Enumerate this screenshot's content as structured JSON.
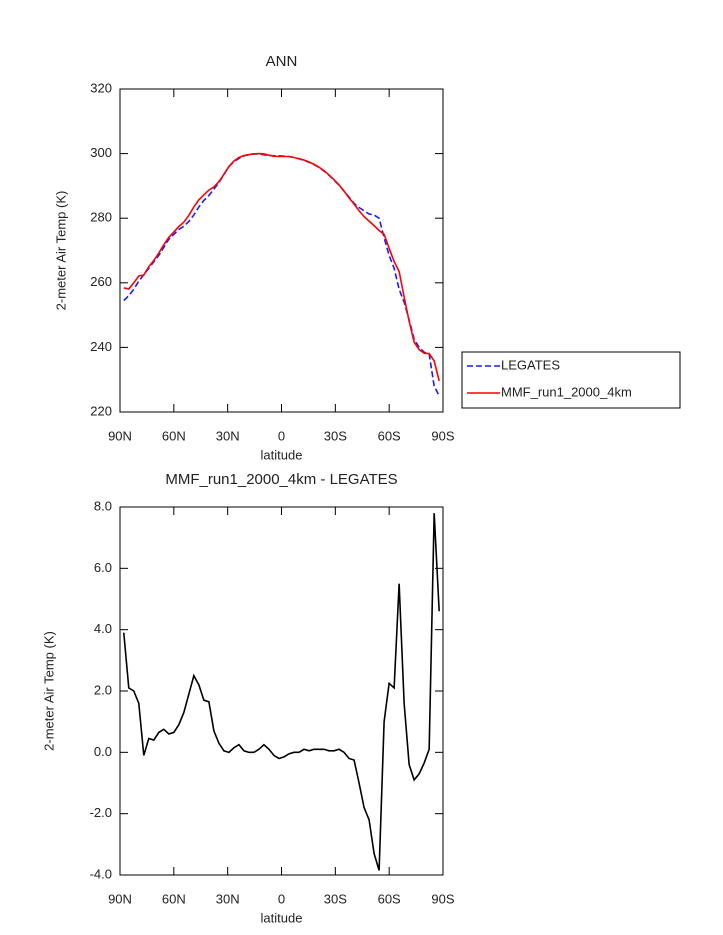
{
  "chart_data": [
    {
      "type": "line",
      "title": "ANN",
      "xlabel": "latitude",
      "ylabel": "2-meter Air Temp (K)",
      "x": [
        87.9,
        85.11,
        82.32,
        79.53,
        76.74,
        73.95,
        71.16,
        68.37,
        65.58,
        62.79,
        60,
        57.21,
        54.42,
        51.63,
        48.84,
        46.05,
        43.26,
        40.47,
        37.68,
        34.89,
        32.1,
        29.31,
        26.52,
        23.73,
        20.94,
        18.15,
        15.36,
        12.57,
        9.78,
        6.99,
        4.2,
        1.41,
        -1.38,
        -4.17,
        -6.96,
        -9.75,
        -12.54,
        -15.33,
        -18.12,
        -20.91,
        -23.7,
        -26.49,
        -29.28,
        -32.07,
        -34.86,
        -37.65,
        -40.44,
        -43.23,
        -46.02,
        -48.81,
        -51.6,
        -54.39,
        -57.18,
        -59.97,
        -62.76,
        -65.55,
        -68.34,
        -71.13,
        -73.92,
        -76.71,
        -79.5,
        -82.29,
        -85.08,
        -87.87
      ],
      "series": [
        {
          "name": "LEGATES",
          "color": "#1a1aff",
          "linestyle": "dashed",
          "values": [
            254.5,
            256,
            258,
            260.5,
            262.5,
            264.5,
            266.5,
            268.5,
            271,
            273.5,
            275,
            276.5,
            277.5,
            279,
            281,
            283.5,
            285.5,
            287,
            289,
            291,
            293.5,
            296,
            297.5,
            298.5,
            299.3,
            299.7,
            299.9,
            299.9,
            299.6,
            299.4,
            299.3,
            299.3,
            299.2,
            299.1,
            298.8,
            298.4,
            297.9,
            297.3,
            296.6,
            295.7,
            294.6,
            293.3,
            291.8,
            290.2,
            288.4,
            286.5,
            284.6,
            283.3,
            282.3,
            281.3,
            281,
            280,
            274,
            268.5,
            264.5,
            258,
            254,
            248.5,
            242.5,
            240,
            238.5,
            238,
            228,
            225
          ]
        },
        {
          "name": "MMF_run1_2000_4km",
          "color": "#ff0000",
          "linestyle": "solid",
          "values": [
            258.4,
            258.1,
            260,
            262.1,
            262.4,
            265,
            266.9,
            269.2,
            271.8,
            274.1,
            275.7,
            277.4,
            278.8,
            280.9,
            283.5,
            285.7,
            287.2,
            288.7,
            289.7,
            291.3,
            293.6,
            296,
            297.7,
            298.8,
            299.4,
            299.7,
            299.9,
            300,
            299.9,
            299.5,
            299.2,
            299.1,
            299.1,
            299.1,
            298.8,
            298.4,
            298,
            297.4,
            296.7,
            295.8,
            294.7,
            293.4,
            291.9,
            290.3,
            288.4,
            286.3,
            284.4,
            282.3,
            280.5,
            279.1,
            277.7,
            276.2,
            275,
            270.7,
            266.6,
            263.5,
            255.6,
            248.1,
            241.6,
            239.3,
            238.2,
            238.1,
            235.8,
            229.6
          ]
        }
      ],
      "xlim": [
        90,
        -90
      ],
      "xticks": [
        {
          "value": 90,
          "label": "90N"
        },
        {
          "value": 60,
          "label": "60N"
        },
        {
          "value": 30,
          "label": "30N"
        },
        0,
        {
          "value": -30,
          "label": "30S"
        },
        {
          "value": -60,
          "label": "60S"
        },
        {
          "value": -90,
          "label": "90S"
        }
      ],
      "ylim": [
        220,
        320
      ],
      "yticks": [
        220,
        240,
        260,
        280,
        300,
        320
      ],
      "legend": "outside-right"
    },
    {
      "type": "line",
      "title": "MMF_run1_2000_4km - LEGATES",
      "xlabel": "latitude",
      "ylabel": "2-meter Air Temp (K)",
      "x": [
        87.9,
        85.11,
        82.32,
        79.53,
        76.74,
        73.95,
        71.16,
        68.37,
        65.58,
        62.79,
        60,
        57.21,
        54.42,
        51.63,
        48.84,
        46.05,
        43.26,
        40.47,
        37.68,
        34.89,
        32.1,
        29.31,
        26.52,
        23.73,
        20.94,
        18.15,
        15.36,
        12.57,
        9.78,
        6.99,
        4.2,
        1.41,
        -1.38,
        -4.17,
        -6.96,
        -9.75,
        -12.54,
        -15.33,
        -18.12,
        -20.91,
        -23.7,
        -26.49,
        -29.28,
        -32.07,
        -34.86,
        -37.65,
        -40.44,
        -43.23,
        -46.02,
        -48.81,
        -51.6,
        -54.39,
        -57.18,
        -59.97,
        -62.76,
        -65.55,
        -68.34,
        -71.13,
        -73.92,
        -76.71,
        -79.5,
        -82.29,
        -85.08,
        -87.87
      ],
      "color": "#000000",
      "values": [
        3.9,
        2.1,
        2,
        1.6,
        -0.1,
        0.45,
        0.4,
        0.65,
        0.75,
        0.6,
        0.65,
        0.9,
        1.3,
        1.9,
        2.5,
        2.2,
        1.7,
        1.65,
        0.7,
        0.3,
        0.05,
        0,
        0.15,
        0.25,
        0.05,
        0,
        0,
        0.1,
        0.25,
        0.1,
        -0.1,
        -0.2,
        -0.15,
        -0.05,
        0,
        0,
        0.1,
        0.05,
        0.1,
        0.1,
        0.1,
        0.05,
        0.05,
        0.1,
        0,
        -0.2,
        -0.25,
        -1,
        -1.8,
        -2.2,
        -3.3,
        -3.85,
        1,
        2.25,
        2.1,
        5.5,
        1.6,
        -0.4,
        -0.9,
        -0.7,
        -0.35,
        0.1,
        7.8,
        4.6
      ],
      "xlim": [
        90,
        -90
      ],
      "xticks": [
        {
          "value": 90,
          "label": "90N"
        },
        {
          "value": 60,
          "label": "60N"
        },
        {
          "value": 30,
          "label": "30N"
        },
        0,
        {
          "value": -30,
          "label": "30S"
        },
        {
          "value": -60,
          "label": "60S"
        },
        {
          "value": -90,
          "label": "90S"
        }
      ],
      "ylim": [
        -4,
        8
      ],
      "yticks": [
        {
          "value": -4,
          "label": "-4.0"
        },
        {
          "value": -2,
          "label": "-2.0"
        },
        {
          "value": 0,
          "label": "0.0"
        },
        {
          "value": 2,
          "label": "2.0"
        },
        {
          "value": 4,
          "label": "4.0"
        },
        {
          "value": 6,
          "label": "6.0"
        },
        {
          "value": 8,
          "label": "8.0"
        }
      ]
    }
  ]
}
